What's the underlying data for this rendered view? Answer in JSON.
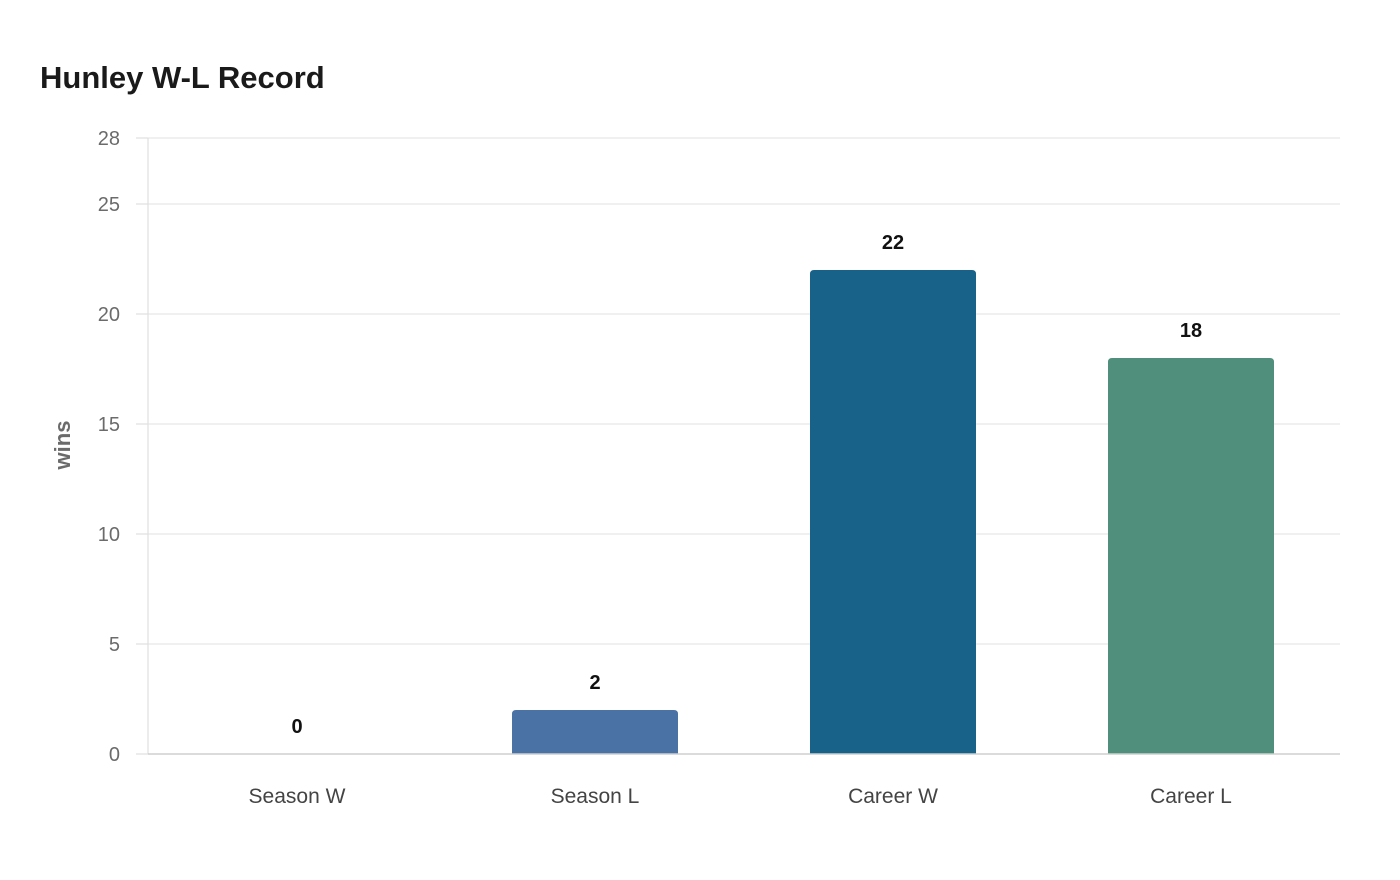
{
  "chart_data": {
    "type": "bar",
    "title": "Hunley W-L Record",
    "ylabel": "wins",
    "xlabel": "",
    "categories": [
      "Season W",
      "Season L",
      "Career W",
      "Career L"
    ],
    "values": [
      0,
      2,
      22,
      18
    ],
    "value_labels": [
      "0",
      "2",
      "22",
      "18"
    ],
    "colors": [
      "#4a72a5",
      "#4a72a5",
      "#186188",
      "#4f8f7c"
    ],
    "ylim": [
      0,
      28
    ],
    "yticks": [
      0,
      5,
      10,
      15,
      20,
      25,
      28
    ],
    "ytick_labels": [
      "0",
      "5",
      "10",
      "15",
      "20",
      "25",
      "28"
    ],
    "grid": true,
    "legend": "none"
  }
}
